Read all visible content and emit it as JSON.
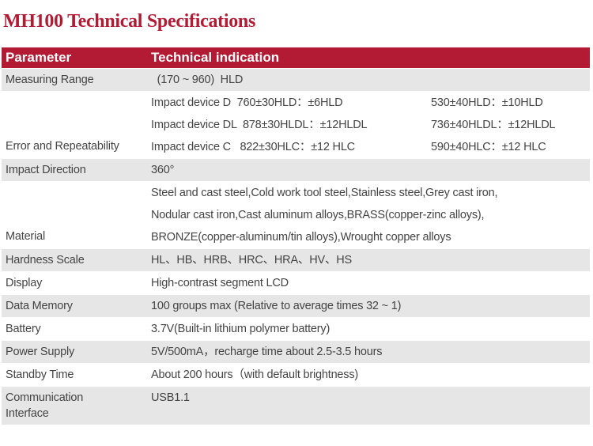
{
  "title": "MH100 Technical Specifications",
  "header": {
    "parameter": "Parameter",
    "indication": "Technical indication"
  },
  "colors": {
    "accent": "#b31b34",
    "row_gray": "#e6e6e6"
  },
  "rows": [
    {
      "label": "Measuring Range",
      "value": "  (170 ~ 960)  HLD"
    },
    {
      "label": "Error and Repeatability",
      "lines": [
        [
          "Impact device D  760±30HLD：±6HLD",
          "530±40HLD：±10HLD"
        ],
        [
          "Impact device DL  878±30HLDL：±12HLDL",
          "736±40HLDL：±12HLDL"
        ],
        [
          "Impact device C   822±30HLC：±12 HLC",
          "590±40HLC：±12 HLC"
        ]
      ]
    },
    {
      "label": "Impact Direction",
      "value": "360°"
    },
    {
      "label": "Material",
      "lines": [
        "Steel and cast steel,Cold work tool steel,Stainless steel,Grey cast iron,",
        "Nodular cast iron,Cast aluminum alloys,BRASS(copper-zinc alloys),",
        "BRONZE(copper-aluminum/tin alloys),Wrought copper alloys"
      ]
    },
    {
      "label": "Hardness Scale",
      "value": "HL、HB、HRB、HRC、HRA、HV、HS"
    },
    {
      "label": "Display",
      "value": "High-contrast segment LCD"
    },
    {
      "label": "Data Memory",
      "value": "100 groups max (Relative to average times 32 ~ 1)"
    },
    {
      "label": "Battery",
      "value": "3.7V(Built-in lithium polymer battery)"
    },
    {
      "label": "Power Supply",
      "value": "5V/500mA，recharge time about 2.5-3.5 hours"
    },
    {
      "label": "Standby Time",
      "value": "About 200 hours（with default brightness)"
    },
    {
      "label": "Communication Interface",
      "value": "USB1.1"
    }
  ]
}
